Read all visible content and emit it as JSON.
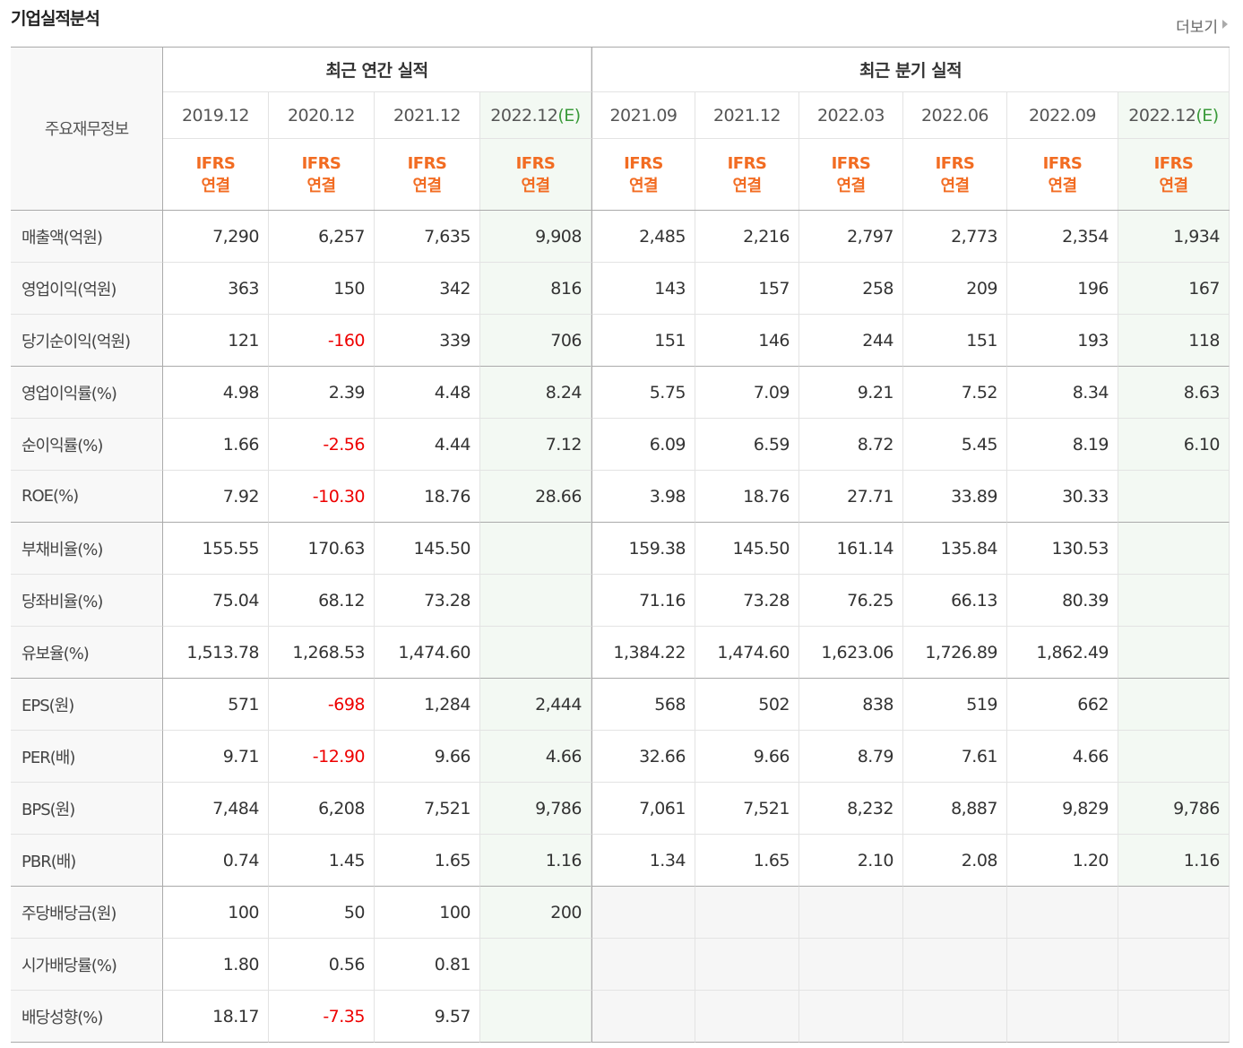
{
  "header": {
    "title": "기업실적분석",
    "more": "더보기"
  },
  "table": {
    "corner": "주요재무정보",
    "groups": [
      {
        "label": "최근 연간 실적",
        "span": 4
      },
      {
        "label": "최근 분기 실적",
        "span": 6
      }
    ],
    "columns": [
      {
        "period": "2019.12",
        "suffix": null,
        "standard": "IFRS",
        "basis": "연결"
      },
      {
        "period": "2020.12",
        "suffix": null,
        "standard": "IFRS",
        "basis": "연결"
      },
      {
        "period": "2021.12",
        "suffix": null,
        "standard": "IFRS",
        "basis": "연결"
      },
      {
        "period": "2022.12",
        "suffix": "(E)",
        "standard": "IFRS",
        "basis": "연결"
      },
      {
        "period": "2021.09",
        "suffix": null,
        "standard": "IFRS",
        "basis": "연결"
      },
      {
        "period": "2021.12",
        "suffix": null,
        "standard": "IFRS",
        "basis": "연결"
      },
      {
        "period": "2022.03",
        "suffix": null,
        "standard": "IFRS",
        "basis": "연결"
      },
      {
        "period": "2022.06",
        "suffix": null,
        "standard": "IFRS",
        "basis": "연결"
      },
      {
        "period": "2022.09",
        "suffix": null,
        "standard": "IFRS",
        "basis": "연결"
      },
      {
        "period": "2022.12",
        "suffix": "(E)",
        "standard": "IFRS",
        "basis": "연결"
      }
    ],
    "rows": [
      {
        "label": "매출액(억원)",
        "cells": [
          "7,290",
          "6,257",
          "7,635",
          "9,908",
          "2,485",
          "2,216",
          "2,797",
          "2,773",
          "2,354",
          "1,934"
        ]
      },
      {
        "label": "영업이익(억원)",
        "cells": [
          "363",
          "150",
          "342",
          "816",
          "143",
          "157",
          "258",
          "209",
          "196",
          "167"
        ]
      },
      {
        "label": "당기순이익(억원)",
        "cells": [
          "121",
          "-160",
          "339",
          "706",
          "151",
          "146",
          "244",
          "151",
          "193",
          "118"
        ]
      },
      {
        "label": "영업이익률(%)",
        "cells": [
          "4.98",
          "2.39",
          "4.48",
          "8.24",
          "5.75",
          "7.09",
          "9.21",
          "7.52",
          "8.34",
          "8.63"
        ]
      },
      {
        "label": "순이익률(%)",
        "cells": [
          "1.66",
          "-2.56",
          "4.44",
          "7.12",
          "6.09",
          "6.59",
          "8.72",
          "5.45",
          "8.19",
          "6.10"
        ]
      },
      {
        "label": "ROE(%)",
        "cells": [
          "7.92",
          "-10.30",
          "18.76",
          "28.66",
          "3.98",
          "18.76",
          "27.71",
          "33.89",
          "30.33",
          null
        ]
      },
      {
        "label": "부채비율(%)",
        "cells": [
          "155.55",
          "170.63",
          "145.50",
          null,
          "159.38",
          "145.50",
          "161.14",
          "135.84",
          "130.53",
          null
        ]
      },
      {
        "label": "당좌비율(%)",
        "cells": [
          "75.04",
          "68.12",
          "73.28",
          null,
          "71.16",
          "73.28",
          "76.25",
          "66.13",
          "80.39",
          null
        ]
      },
      {
        "label": "유보율(%)",
        "cells": [
          "1,513.78",
          "1,268.53",
          "1,474.60",
          null,
          "1,384.22",
          "1,474.60",
          "1,623.06",
          "1,726.89",
          "1,862.49",
          null
        ]
      },
      {
        "label": "EPS(원)",
        "cells": [
          "571",
          "-698",
          "1,284",
          "2,444",
          "568",
          "502",
          "838",
          "519",
          "662",
          null
        ]
      },
      {
        "label": "PER(배)",
        "cells": [
          "9.71",
          "-12.90",
          "9.66",
          "4.66",
          "32.66",
          "9.66",
          "8.79",
          "7.61",
          "4.66",
          null
        ]
      },
      {
        "label": "BPS(원)",
        "cells": [
          "7,484",
          "6,208",
          "7,521",
          "9,786",
          "7,061",
          "7,521",
          "8,232",
          "8,887",
          "9,829",
          "9,786"
        ]
      },
      {
        "label": "PBR(배)",
        "cells": [
          "0.74",
          "1.45",
          "1.65",
          "1.16",
          "1.34",
          "1.65",
          "2.10",
          "2.08",
          "1.20",
          "1.16"
        ]
      },
      {
        "label": "주당배당금(원)",
        "cells": [
          "100",
          "50",
          "100",
          "200",
          null,
          null,
          null,
          null,
          null,
          null
        ]
      },
      {
        "label": "시가배당률(%)",
        "cells": [
          "1.80",
          "0.56",
          "0.81",
          null,
          null,
          null,
          null,
          null,
          null,
          null
        ]
      },
      {
        "label": "배당성향(%)",
        "cells": [
          "18.17",
          "-7.35",
          "9.57",
          null,
          null,
          null,
          null,
          null,
          null,
          null
        ]
      }
    ]
  }
}
